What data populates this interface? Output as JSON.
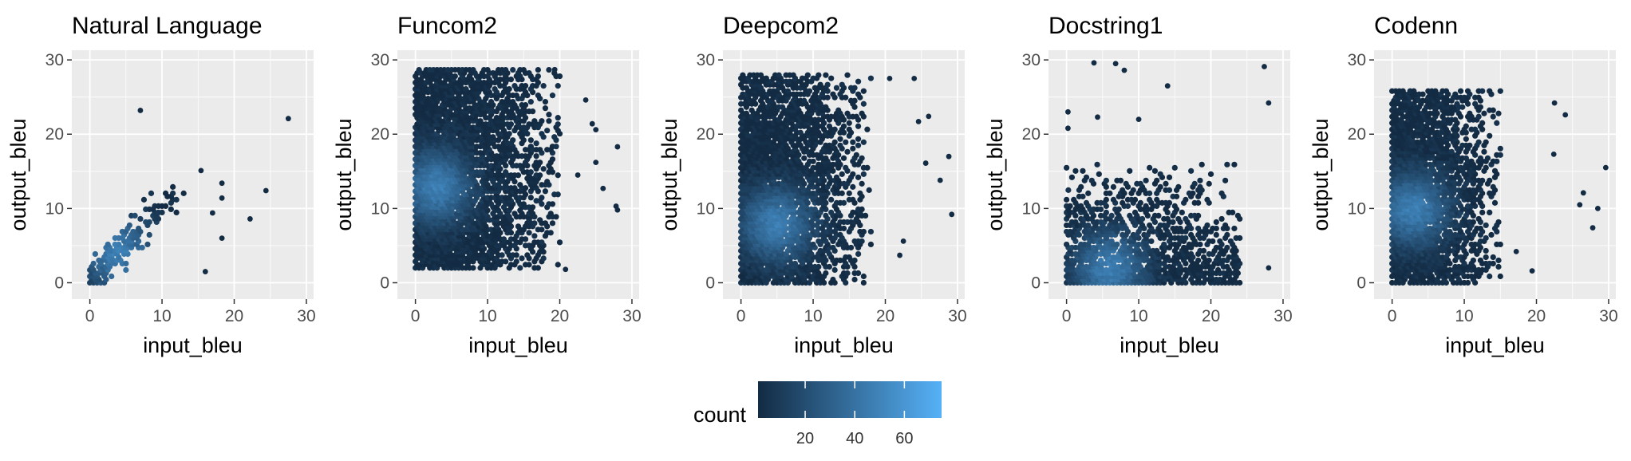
{
  "chart_data": [
    {
      "type": "hexbin",
      "title": "Natural Language",
      "xlabel": "input_bleu",
      "ylabel": "output_bleu",
      "xlim": [
        -2.5,
        31
      ],
      "ylim": [
        -2.2,
        31.3
      ],
      "xticks": [
        0,
        10,
        20,
        30
      ],
      "yticks": [
        0,
        10,
        20,
        30
      ],
      "dense_region": {
        "x": [
          0,
          13
        ],
        "y": [
          0,
          14
        ]
      },
      "peak": {
        "x": 4,
        "y": 4
      },
      "points": [
        [
          7,
          23.2
        ],
        [
          27.5,
          22.1
        ],
        [
          24.4,
          12.4
        ],
        [
          22.2,
          8.6
        ],
        [
          18.3,
          13.4
        ],
        [
          18.3,
          11.4
        ],
        [
          18.3,
          6
        ],
        [
          15.4,
          15.1
        ],
        [
          16,
          1.5
        ],
        [
          17,
          9.4
        ]
      ]
    },
    {
      "type": "hexbin",
      "title": "Funcom2",
      "xlabel": "input_bleu",
      "ylabel": "output_bleu",
      "xlim": [
        -2.5,
        31
      ],
      "ylim": [
        -2.2,
        31.3
      ],
      "xticks": [
        0,
        10,
        20,
        30
      ],
      "yticks": [
        0,
        10,
        20,
        30
      ],
      "dense_region": {
        "x": [
          0,
          20
        ],
        "y": [
          2,
          29
        ]
      },
      "peak": {
        "x": 3,
        "y": 13
      },
      "points": [
        [
          28,
          18.3
        ],
        [
          27.8,
          10.3
        ],
        [
          28,
          9.8
        ],
        [
          24.5,
          21.4
        ],
        [
          25,
          20.6
        ],
        [
          23.6,
          24.6
        ],
        [
          25,
          16.2
        ],
        [
          22.5,
          14.5
        ],
        [
          26,
          12.7
        ],
        [
          20.8,
          1.8
        ],
        [
          19.3,
          28.7
        ]
      ]
    },
    {
      "type": "hexbin",
      "title": "Deepcom2",
      "xlabel": "input_bleu",
      "ylabel": "output_bleu",
      "xlim": [
        -2.5,
        31
      ],
      "ylim": [
        -2.2,
        31.3
      ],
      "xticks": [
        0,
        10,
        20,
        30
      ],
      "yticks": [
        0,
        10,
        20,
        30
      ],
      "dense_region": {
        "x": [
          0,
          18
        ],
        "y": [
          0,
          28
        ]
      },
      "peak": {
        "x": 5,
        "y": 8
      },
      "points": [
        [
          28.8,
          17
        ],
        [
          29.2,
          9.2
        ],
        [
          26,
          22.4
        ],
        [
          24.6,
          21.7
        ],
        [
          25.6,
          16.1
        ],
        [
          27.6,
          13.8
        ],
        [
          24,
          27.5
        ],
        [
          20.6,
          27.5
        ],
        [
          22.5,
          5.6
        ],
        [
          22,
          3.7
        ]
      ]
    },
    {
      "type": "hexbin",
      "title": "Docstring1",
      "xlabel": "input_bleu",
      "ylabel": "output_bleu",
      "xlim": [
        -2.5,
        31
      ],
      "ylim": [
        -2.2,
        31.3
      ],
      "xticks": [
        0,
        10,
        20,
        30
      ],
      "yticks": [
        0,
        10,
        20,
        30
      ],
      "dense_region": {
        "x": [
          0,
          24
        ],
        "y": [
          0,
          16
        ]
      },
      "peak": {
        "x": 6,
        "y": 2
      },
      "points": [
        [
          3.8,
          29.6
        ],
        [
          6.8,
          29.5
        ],
        [
          8,
          28.6
        ],
        [
          27.4,
          29.1
        ],
        [
          28,
          24.2
        ],
        [
          14,
          26.5
        ],
        [
          0.2,
          23
        ],
        [
          4.3,
          22.3
        ],
        [
          10,
          22
        ],
        [
          0.2,
          20.8
        ],
        [
          28,
          2
        ]
      ]
    },
    {
      "type": "hexbin",
      "title": "Codenn",
      "xlabel": "input_bleu",
      "ylabel": "output_bleu",
      "xlim": [
        -2.5,
        31
      ],
      "ylim": [
        -2.2,
        31.3
      ],
      "xticks": [
        0,
        10,
        20,
        30
      ],
      "yticks": [
        0,
        10,
        20,
        30
      ],
      "dense_region": {
        "x": [
          0,
          15
        ],
        "y": [
          0,
          26
        ]
      },
      "peak": {
        "x": 3,
        "y": 10
      },
      "points": [
        [
          29.6,
          15.5
        ],
        [
          24,
          22.6
        ],
        [
          22.5,
          24.2
        ],
        [
          26,
          10.5
        ],
        [
          27.8,
          7.4
        ],
        [
          28.5,
          10
        ],
        [
          26.5,
          12.1
        ],
        [
          19.4,
          1.6
        ],
        [
          17.2,
          4.2
        ],
        [
          22.4,
          17.3
        ]
      ]
    }
  ],
  "legend": {
    "title": "count",
    "ticks": [
      20,
      40,
      60
    ],
    "range": [
      1,
      75
    ],
    "colors": [
      "#132B43",
      "#56B1F7"
    ]
  },
  "colors": {
    "panel_bg": "#EBEBEB",
    "grid": "#FFFFFF",
    "tick": "#333333"
  }
}
